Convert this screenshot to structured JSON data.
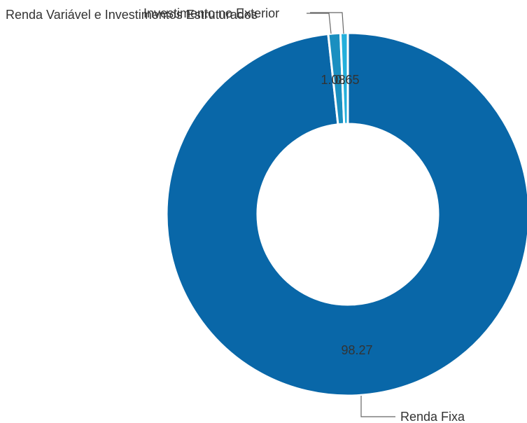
{
  "chart_data": {
    "type": "pie",
    "donut": true,
    "categories": [
      "Renda Fixa",
      "Renda Variável e Investimentos Estruturados",
      "Investimento no Exterior"
    ],
    "values": [
      98.27,
      1.08,
      0.65
    ],
    "value_labels": [
      "98.27",
      "1.08",
      "0.65"
    ],
    "colors": [
      "#0967a8",
      "#1a8fc0",
      "#24afdb"
    ],
    "legend": "none",
    "data_labels": "inside-ring",
    "category_labels": "leader-lines"
  }
}
